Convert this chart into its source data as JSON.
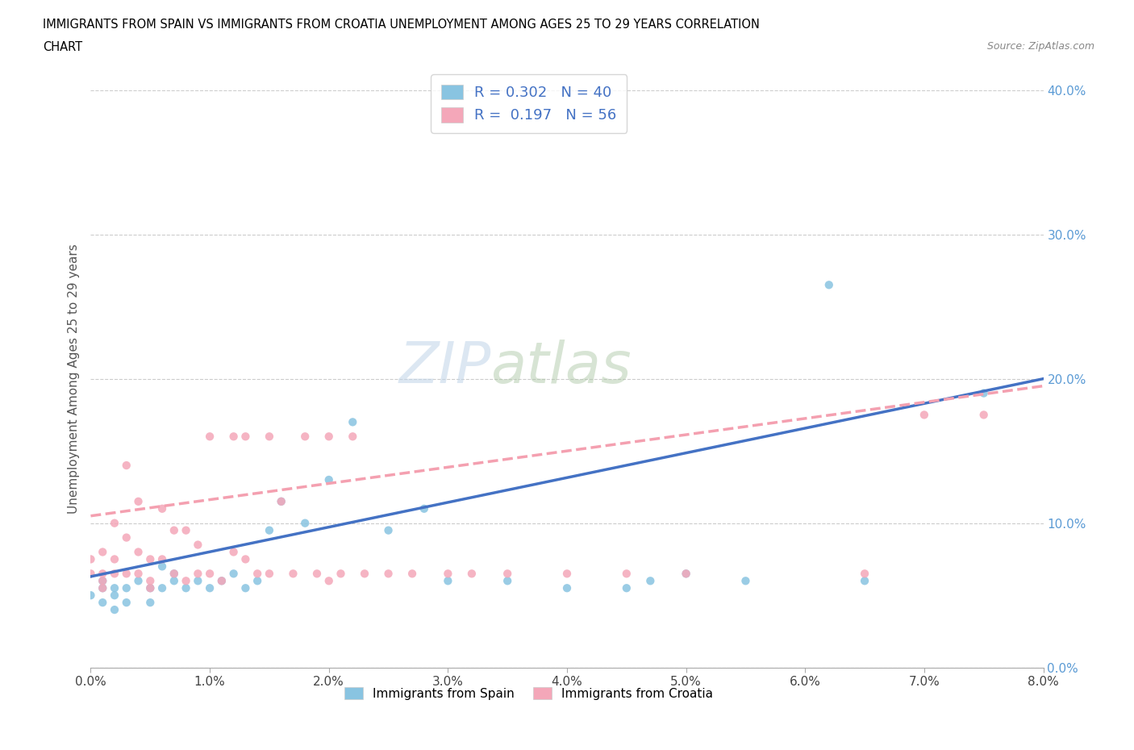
{
  "title_line1": "IMMIGRANTS FROM SPAIN VS IMMIGRANTS FROM CROATIA UNEMPLOYMENT AMONG AGES 25 TO 29 YEARS CORRELATION",
  "title_line2": "CHART",
  "source_text": "Source: ZipAtlas.com",
  "ylabel_label": "Unemployment Among Ages 25 to 29 years",
  "legend_label1": "Immigrants from Spain",
  "legend_label2": "Immigrants from Croatia",
  "R1": 0.302,
  "N1": 40,
  "R2": 0.197,
  "N2": 56,
  "color_spain": "#89c4e1",
  "color_croatia": "#f4a7b9",
  "color_spain_line": "#4472c4",
  "color_croatia_line": "#f4a0b0",
  "xlim": [
    0.0,
    0.08
  ],
  "ylim": [
    0.0,
    0.4
  ],
  "spain_x": [
    0.0,
    0.001,
    0.001,
    0.001,
    0.002,
    0.002,
    0.002,
    0.003,
    0.003,
    0.004,
    0.005,
    0.005,
    0.006,
    0.006,
    0.007,
    0.007,
    0.008,
    0.009,
    0.01,
    0.011,
    0.012,
    0.013,
    0.014,
    0.015,
    0.016,
    0.018,
    0.02,
    0.022,
    0.025,
    0.028,
    0.03,
    0.035,
    0.04,
    0.045,
    0.047,
    0.05,
    0.055,
    0.062,
    0.065,
    0.075
  ],
  "spain_y": [
    0.05,
    0.06,
    0.055,
    0.045,
    0.055,
    0.05,
    0.04,
    0.055,
    0.045,
    0.06,
    0.055,
    0.045,
    0.07,
    0.055,
    0.06,
    0.065,
    0.055,
    0.06,
    0.055,
    0.06,
    0.065,
    0.055,
    0.06,
    0.095,
    0.115,
    0.1,
    0.13,
    0.17,
    0.095,
    0.11,
    0.06,
    0.06,
    0.055,
    0.055,
    0.06,
    0.065,
    0.06,
    0.265,
    0.06,
    0.19
  ],
  "croatia_x": [
    0.0,
    0.0,
    0.001,
    0.001,
    0.001,
    0.001,
    0.002,
    0.002,
    0.002,
    0.003,
    0.003,
    0.003,
    0.004,
    0.004,
    0.004,
    0.005,
    0.005,
    0.005,
    0.006,
    0.006,
    0.007,
    0.007,
    0.008,
    0.008,
    0.009,
    0.009,
    0.01,
    0.01,
    0.011,
    0.012,
    0.012,
    0.013,
    0.013,
    0.014,
    0.015,
    0.015,
    0.016,
    0.017,
    0.018,
    0.019,
    0.02,
    0.02,
    0.021,
    0.022,
    0.023,
    0.025,
    0.027,
    0.03,
    0.032,
    0.035,
    0.04,
    0.045,
    0.05,
    0.065,
    0.07,
    0.075
  ],
  "croatia_y": [
    0.075,
    0.065,
    0.08,
    0.065,
    0.06,
    0.055,
    0.1,
    0.075,
    0.065,
    0.14,
    0.09,
    0.065,
    0.115,
    0.08,
    0.065,
    0.075,
    0.06,
    0.055,
    0.11,
    0.075,
    0.095,
    0.065,
    0.095,
    0.06,
    0.085,
    0.065,
    0.16,
    0.065,
    0.06,
    0.16,
    0.08,
    0.16,
    0.075,
    0.065,
    0.16,
    0.065,
    0.115,
    0.065,
    0.16,
    0.065,
    0.16,
    0.06,
    0.065,
    0.16,
    0.065,
    0.065,
    0.065,
    0.065,
    0.065,
    0.065,
    0.065,
    0.065,
    0.065,
    0.065,
    0.175,
    0.175
  ],
  "spain_trend": [
    0.063,
    0.2
  ],
  "croatia_trend": [
    0.105,
    0.195
  ],
  "trend_x_start": 0.0,
  "trend_x_end": 0.08
}
